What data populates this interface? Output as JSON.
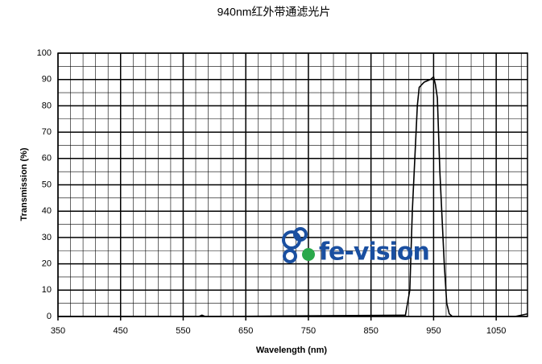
{
  "chart_data": {
    "type": "line",
    "title": "940nm红外带通滤光片",
    "x_label": "Wavelength (nm)",
    "y_label": "Transmission (%)",
    "watermark": "fe-vision",
    "x": [
      350,
      500,
      575,
      580,
      585,
      600,
      900,
      905,
      912,
      916,
      920,
      924,
      927,
      935,
      945,
      950,
      953,
      956,
      960,
      963,
      967,
      971,
      975,
      980,
      1080,
      1090,
      1100
    ],
    "series": [
      {
        "name": "Transmission",
        "color": "#000000",
        "values": [
          0,
          0,
          0,
          0.5,
          0,
          0,
          0.5,
          0.5,
          10,
          40,
          60,
          80,
          87,
          89,
          90,
          91,
          88,
          83,
          55,
          40,
          20,
          5,
          1,
          0,
          0,
          0.5,
          1
        ]
      }
    ],
    "xlim": [
      350,
      1100
    ],
    "ylim": [
      0,
      100
    ],
    "xticks": [
      350,
      450,
      550,
      650,
      750,
      850,
      950,
      1050
    ],
    "yticks": [
      0,
      10,
      20,
      30,
      40,
      50,
      60,
      70,
      80,
      90,
      100
    ],
    "grid": true
  }
}
